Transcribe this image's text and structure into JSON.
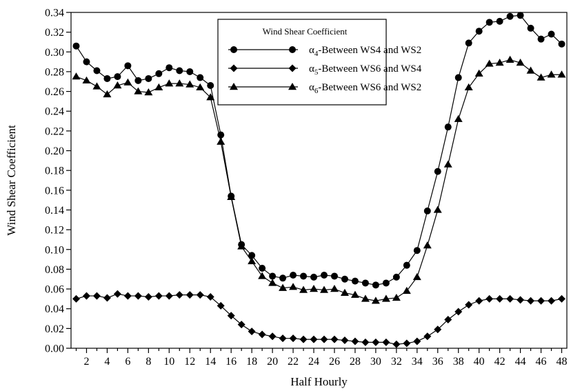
{
  "chart_data": {
    "type": "line",
    "title": "",
    "xlabel": "Half Hourly",
    "ylabel": "Wind Shear Coefficient",
    "xlim": [
      0.5,
      48.5
    ],
    "ylim": [
      0,
      0.34
    ],
    "xticks": [
      2,
      4,
      6,
      8,
      10,
      12,
      14,
      16,
      18,
      20,
      22,
      24,
      26,
      28,
      30,
      32,
      34,
      36,
      38,
      40,
      42,
      44,
      46,
      48
    ],
    "yticks": [
      0.0,
      0.02,
      0.04,
      0.06,
      0.08,
      0.1,
      0.12,
      0.14,
      0.16,
      0.18,
      0.2,
      0.22,
      0.24,
      0.26,
      0.28,
      0.3,
      0.32,
      0.34
    ],
    "grid": false,
    "legend": {
      "title": "Wind Shear Coefficient",
      "position": "top-center"
    },
    "x": [
      1,
      2,
      3,
      4,
      5,
      6,
      7,
      8,
      9,
      10,
      11,
      12,
      13,
      14,
      15,
      16,
      17,
      18,
      19,
      20,
      21,
      22,
      23,
      24,
      25,
      26,
      27,
      28,
      29,
      30,
      31,
      32,
      33,
      34,
      35,
      36,
      37,
      38,
      39,
      40,
      41,
      42,
      43,
      44,
      45,
      46,
      47,
      48
    ],
    "series": [
      {
        "name": "α4-Between WS4 and WS2",
        "symbol": "α",
        "subscript": "4",
        "suffix": "-Between WS4 and WS2",
        "marker": "circle",
        "values": [
          0.306,
          0.29,
          0.281,
          0.273,
          0.275,
          0.286,
          0.271,
          0.273,
          0.278,
          0.284,
          0.281,
          0.28,
          0.274,
          0.266,
          0.216,
          0.154,
          0.105,
          0.094,
          0.081,
          0.073,
          0.071,
          0.074,
          0.073,
          0.072,
          0.074,
          0.073,
          0.07,
          0.068,
          0.066,
          0.064,
          0.066,
          0.072,
          0.084,
          0.099,
          0.139,
          0.179,
          0.224,
          0.274,
          0.309,
          0.321,
          0.33,
          0.331,
          0.336,
          0.337,
          0.324,
          0.313,
          0.318,
          0.308
        ]
      },
      {
        "name": "α5-Between WS6 and WS4",
        "symbol": "α",
        "subscript": "5",
        "suffix": "-Between WS6 and WS4",
        "marker": "diamond",
        "values": [
          0.05,
          0.053,
          0.053,
          0.051,
          0.055,
          0.053,
          0.053,
          0.052,
          0.053,
          0.053,
          0.054,
          0.054,
          0.054,
          0.052,
          0.043,
          0.033,
          0.024,
          0.017,
          0.014,
          0.012,
          0.01,
          0.01,
          0.009,
          0.009,
          0.009,
          0.009,
          0.008,
          0.007,
          0.006,
          0.006,
          0.006,
          0.004,
          0.005,
          0.007,
          0.012,
          0.019,
          0.029,
          0.037,
          0.044,
          0.048,
          0.05,
          0.05,
          0.05,
          0.049,
          0.048,
          0.048,
          0.048,
          0.05
        ]
      },
      {
        "name": "α6-Between WS6 and WS2",
        "symbol": "α",
        "subscript": "6",
        "suffix": "-Between WS6 and WS2",
        "marker": "triangle",
        "values": [
          0.275,
          0.271,
          0.265,
          0.257,
          0.266,
          0.269,
          0.26,
          0.259,
          0.264,
          0.268,
          0.268,
          0.267,
          0.264,
          0.254,
          0.209,
          0.153,
          0.103,
          0.088,
          0.073,
          0.066,
          0.061,
          0.062,
          0.059,
          0.06,
          0.059,
          0.06,
          0.056,
          0.054,
          0.05,
          0.048,
          0.05,
          0.051,
          0.058,
          0.072,
          0.104,
          0.14,
          0.186,
          0.232,
          0.264,
          0.278,
          0.288,
          0.289,
          0.292,
          0.289,
          0.281,
          0.274,
          0.277,
          0.277
        ]
      }
    ]
  }
}
